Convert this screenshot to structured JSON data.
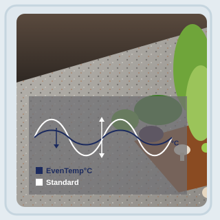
{
  "overlay": {
    "unit": "°C",
    "legend": [
      {
        "label": "EvenTemp°C",
        "color": "#1b2a5e"
      },
      {
        "label": "Standard",
        "color": "#ffffff"
      }
    ]
  }
}
